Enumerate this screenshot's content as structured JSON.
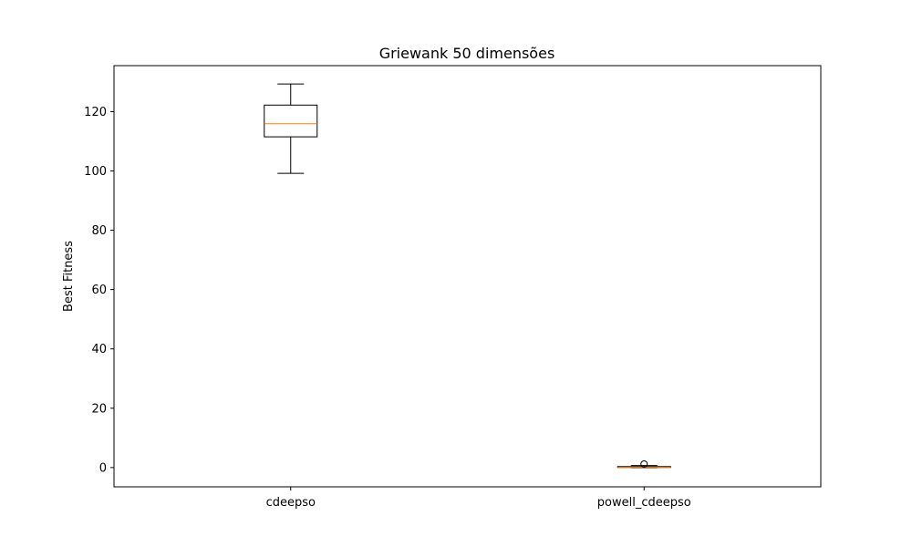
{
  "chart_data": {
    "type": "box",
    "title": "Griewank 50 dimensões",
    "xlabel": "",
    "ylabel": "Best Fitness",
    "ylim": [
      -6.5,
      135.5
    ],
    "y_ticks": [
      0,
      20,
      40,
      60,
      80,
      100,
      120
    ],
    "categories": [
      "cdeepso",
      "powell_cdeepso"
    ],
    "boxes": [
      {
        "name": "cdeepso",
        "whisker_low": 99.2,
        "q1": 111.5,
        "median": 115.9,
        "q3": 122.2,
        "whisker_high": 129.3,
        "outliers": []
      },
      {
        "name": "powell_cdeepso",
        "whisker_low": 0.0,
        "q1": 0.05,
        "median": 0.15,
        "q3": 0.35,
        "whisker_high": 0.7,
        "outliers": [
          1.2
        ]
      }
    ],
    "grid": false,
    "colors": {
      "box": "#000000",
      "median": "#ff7f0e",
      "outlier": "#000000"
    }
  }
}
